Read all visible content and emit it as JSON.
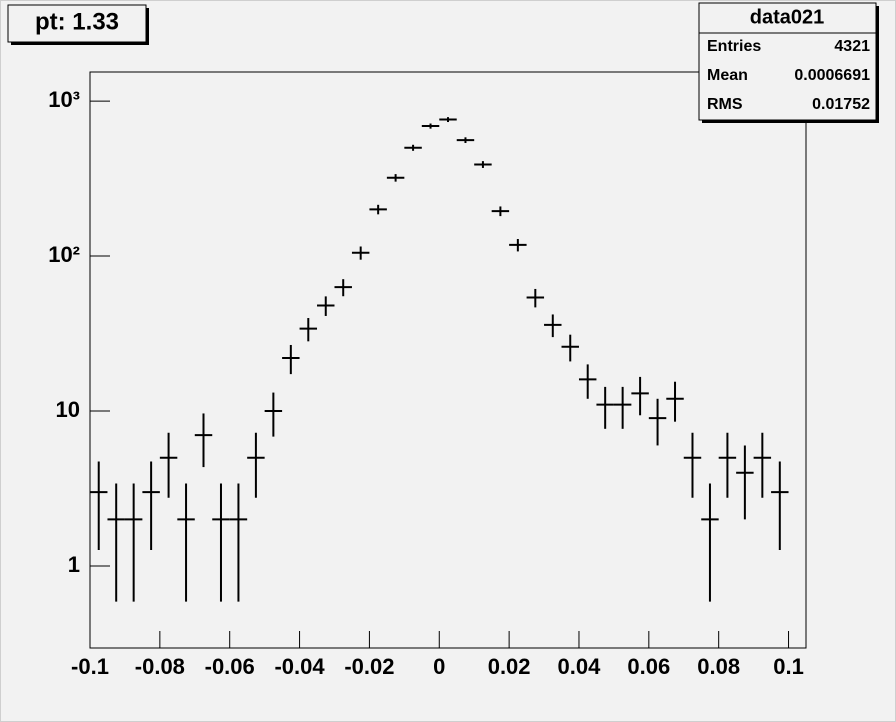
{
  "chart_data": {
    "type": "errorbar",
    "title": "pt: 1.33",
    "x": [
      -0.0975,
      -0.0925,
      -0.0875,
      -0.0825,
      -0.0775,
      -0.0725,
      -0.0675,
      -0.0625,
      -0.0575,
      -0.0525,
      -0.0475,
      -0.0425,
      -0.0375,
      -0.0325,
      -0.0275,
      -0.0225,
      -0.0175,
      -0.0125,
      -0.0075,
      -0.0025,
      0.0025,
      0.0075,
      0.0125,
      0.0175,
      0.0225,
      0.0275,
      0.0325,
      0.0375,
      0.0425,
      0.0475,
      0.0525,
      0.0575,
      0.0625,
      0.0675,
      0.0725,
      0.0775,
      0.0825,
      0.0875,
      0.0925,
      0.0975
    ],
    "bin_width": 0.005,
    "values": [
      3,
      2,
      2,
      3,
      5,
      2,
      7,
      2,
      2,
      5,
      10,
      22,
      34,
      48,
      63,
      105,
      200,
      320,
      500,
      690,
      760,
      560,
      390,
      195,
      118,
      54,
      36,
      26,
      16,
      11,
      11,
      13,
      9,
      12,
      5,
      2,
      5,
      4,
      5,
      3
    ],
    "errors": [
      1.73,
      1.41,
      1.41,
      1.73,
      2.24,
      1.41,
      2.65,
      1.41,
      1.41,
      2.24,
      3.16,
      4.69,
      5.83,
      6.93,
      7.94,
      10.25,
      14.14,
      17.89,
      22.36,
      26.27,
      27.57,
      23.66,
      19.75,
      13.96,
      10.86,
      7.35,
      6,
      5.1,
      4,
      3.32,
      3.32,
      3.61,
      3,
      3.46,
      2.24,
      1.41,
      2.24,
      2,
      2.24,
      1.73
    ],
    "color": "#000000",
    "xlim": [
      -0.1,
      0.105
    ],
    "xticks": [
      -0.1,
      -0.08,
      -0.06,
      -0.04,
      -0.02,
      0,
      0.02,
      0.04,
      0.06,
      0.08,
      0.1
    ],
    "ylim": [
      0.296,
      1540
    ],
    "log_y": true,
    "yticks": [
      1,
      10,
      {
        "value": 100,
        "label": "10²"
      },
      {
        "value": 1000,
        "label": "10³"
      }
    ],
    "stats": {
      "title": "data021",
      "rows": [
        [
          "Entries",
          "4321"
        ],
        [
          "Mean",
          "0.0006691"
        ],
        [
          "RMS",
          "0.01752"
        ]
      ]
    }
  }
}
